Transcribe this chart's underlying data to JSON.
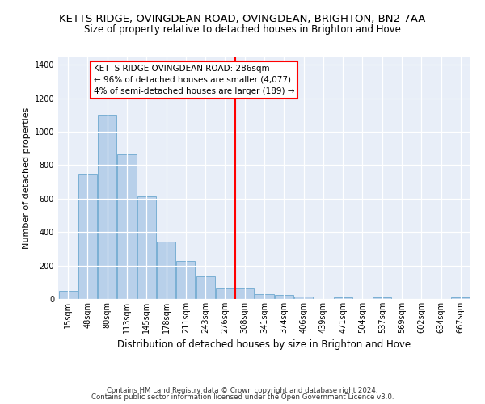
{
  "title": "KETTS RIDGE, OVINGDEAN ROAD, OVINGDEAN, BRIGHTON, BN2 7AA",
  "subtitle": "Size of property relative to detached houses in Brighton and Hove",
  "xlabel": "Distribution of detached houses by size in Brighton and Hove",
  "ylabel": "Number of detached properties",
  "categories": [
    "15sqm",
    "48sqm",
    "80sqm",
    "113sqm",
    "145sqm",
    "178sqm",
    "211sqm",
    "243sqm",
    "276sqm",
    "308sqm",
    "341sqm",
    "374sqm",
    "406sqm",
    "439sqm",
    "471sqm",
    "504sqm",
    "537sqm",
    "569sqm",
    "602sqm",
    "634sqm",
    "667sqm"
  ],
  "bar_values": [
    50,
    750,
    1100,
    865,
    615,
    345,
    225,
    135,
    65,
    65,
    30,
    22,
    15,
    0,
    10,
    0,
    10,
    0,
    0,
    0,
    10
  ],
  "bar_color": "#b8d0ea",
  "bar_edge_color": "#7aafd4",
  "vline_color": "red",
  "vline_pos": 8.5,
  "annotation_text": "KETTS RIDGE OVINGDEAN ROAD: 286sqm\n← 96% of detached houses are smaller (4,077)\n4% of semi-detached houses are larger (189) →",
  "ylim_max": 1450,
  "yticks": [
    0,
    200,
    400,
    600,
    800,
    1000,
    1200,
    1400
  ],
  "bg_color": "#e8eef8",
  "grid_color": "white",
  "footer1": "Contains HM Land Registry data © Crown copyright and database right 2024.",
  "footer2": "Contains public sector information licensed under the Open Government Licence v3.0.",
  "title_fontsize": 9.5,
  "subtitle_fontsize": 8.5,
  "ylabel_fontsize": 8,
  "xlabel_fontsize": 8.5,
  "tick_fontsize": 7,
  "ann_fontsize": 7.5
}
